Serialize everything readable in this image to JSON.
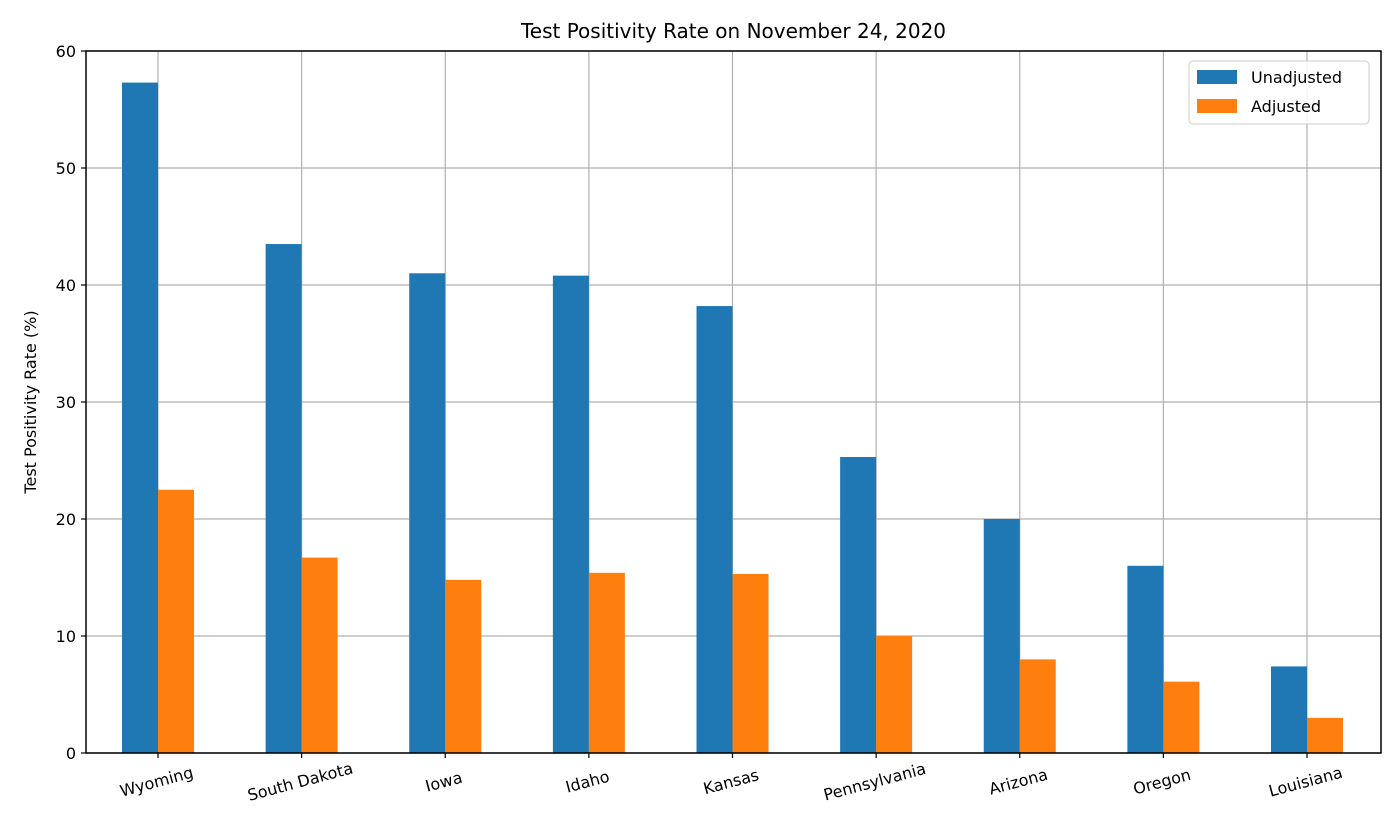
{
  "chart_data": {
    "type": "bar",
    "title": "Test Positivity Rate on November 24, 2020",
    "xlabel": "",
    "ylabel": "Test Positivity Rate (%)",
    "ylim": [
      0,
      60
    ],
    "yticks": [
      0,
      10,
      20,
      30,
      40,
      50,
      60
    ],
    "grid": true,
    "legend_position": "top-right",
    "categories": [
      "Wyoming",
      "South Dakota",
      "Iowa",
      "Idaho",
      "Kansas",
      "Pennsylvania",
      "Arizona",
      "Oregon",
      "Louisiana"
    ],
    "series": [
      {
        "name": "Unadjusted",
        "color": "#1f77b4",
        "values": [
          57.3,
          43.5,
          41.0,
          40.8,
          38.2,
          25.3,
          20.0,
          16.0,
          7.4
        ]
      },
      {
        "name": "Adjusted",
        "color": "#ff7f0e",
        "values": [
          22.5,
          16.7,
          14.8,
          15.4,
          15.3,
          10.0,
          8.0,
          6.1,
          3.0
        ]
      }
    ]
  }
}
